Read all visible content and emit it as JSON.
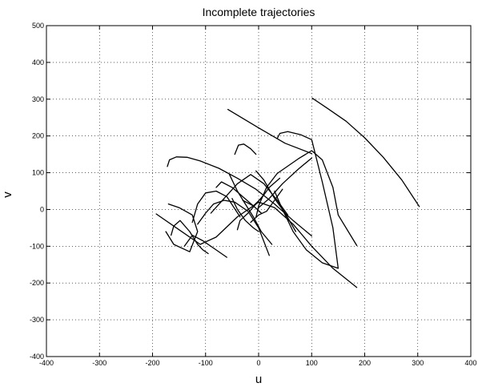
{
  "chart_data": {
    "type": "line",
    "title": "Incomplete trajectories",
    "xlabel": "u",
    "ylabel": "v",
    "xlim": [
      -400,
      400
    ],
    "ylim": [
      -400,
      500
    ],
    "xticks": [
      -400,
      -300,
      -200,
      -100,
      0,
      100,
      200,
      300,
      400
    ],
    "yticks": [
      -400,
      -300,
      -200,
      -100,
      0,
      100,
      200,
      300,
      400,
      500
    ],
    "grid": true,
    "series": [
      {
        "x": [
          101,
          130,
          165,
          200,
          235,
          270,
          303
        ],
        "y": [
          303,
          275,
          240,
          195,
          142,
          80,
          8
        ]
      },
      {
        "x": [
          -58,
          0,
          50,
          100
        ],
        "y": [
          272,
          222,
          180,
          152
        ]
      },
      {
        "x": [
          -172,
          -168,
          -155,
          -135,
          -110,
          -75,
          -40,
          -5,
          30,
          65,
          100
        ],
        "y": [
          117,
          135,
          143,
          142,
          132,
          112,
          85,
          55,
          15,
          -30,
          -72
        ]
      },
      {
        "x": [
          -5,
          0,
          15,
          35,
          75,
          100,
          120,
          140,
          150,
          185
        ],
        "y": [
          -22,
          10,
          60,
          98,
          138,
          160,
          135,
          60,
          -15,
          -98
        ]
      },
      {
        "x": [
          35,
          40,
          55,
          80,
          100,
          120,
          140,
          150,
          120,
          90,
          65,
          45,
          30
        ],
        "y": [
          193,
          207,
          212,
          203,
          190,
          75,
          -50,
          -160,
          -145,
          -110,
          -60,
          0,
          50
        ]
      },
      {
        "x": [
          -193,
          -150,
          -110,
          -80,
          -40,
          0,
          30,
          65,
          100,
          140,
          185
        ],
        "y": [
          -12,
          -55,
          -95,
          -75,
          -20,
          20,
          5,
          -40,
          -100,
          -160,
          -212
        ]
      },
      {
        "x": [
          -45,
          -38,
          -28,
          -15,
          -5
        ],
        "y": [
          150,
          175,
          178,
          165,
          150
        ]
      },
      {
        "x": [
          -165,
          -160,
          -148,
          -130,
          -115,
          -105,
          -95
        ],
        "y": [
          -70,
          -45,
          -30,
          -60,
          -95,
          -110,
          -120
        ]
      },
      {
        "x": [
          -140,
          -125,
          -105,
          -85,
          -60
        ],
        "y": [
          -100,
          -70,
          -85,
          -105,
          -130
        ]
      },
      {
        "x": [
          -170,
          -150,
          -125,
          -115,
          -130,
          -160,
          -175
        ],
        "y": [
          15,
          5,
          -15,
          -60,
          -115,
          -95,
          -60
        ]
      },
      {
        "x": [
          -115,
          -100,
          -85,
          -65,
          -45,
          -20,
          0,
          20
        ],
        "y": [
          -40,
          -10,
          15,
          25,
          20,
          -5,
          -50,
          -125
        ]
      },
      {
        "x": [
          -125,
          -115,
          -100,
          -80,
          -60,
          -35
        ],
        "y": [
          -35,
          15,
          45,
          50,
          35,
          -20
        ]
      },
      {
        "x": [
          -80,
          -70,
          -50,
          -30,
          -10,
          5
        ],
        "y": [
          60,
          75,
          60,
          35,
          10,
          -10
        ]
      },
      {
        "x": [
          -55,
          -40,
          -25,
          -10,
          5,
          25
        ],
        "y": [
          95,
          50,
          15,
          -20,
          -60,
          -95
        ]
      },
      {
        "x": [
          -30,
          -10,
          5,
          20,
          40
        ],
        "y": [
          25,
          10,
          30,
          60,
          85
        ]
      },
      {
        "x": [
          -15,
          0,
          15,
          30,
          45
        ],
        "y": [
          -35,
          -15,
          -5,
          25,
          55
        ]
      },
      {
        "x": [
          -5,
          10,
          30,
          50,
          70
        ],
        "y": [
          105,
          80,
          30,
          -10,
          -60
        ]
      },
      {
        "x": [
          -40,
          -35,
          -20,
          -5,
          10
        ],
        "y": [
          -55,
          -30,
          -10,
          15,
          40
        ]
      },
      {
        "x": [
          -50,
          -40,
          -25,
          -10,
          0
        ],
        "y": [
          30,
          0,
          -30,
          -50,
          -60
        ]
      },
      {
        "x": [
          -90,
          -65,
          -40,
          -15,
          10,
          35,
          55
        ],
        "y": [
          -10,
          30,
          70,
          95,
          70,
          25,
          -15
        ]
      },
      {
        "x": [
          0,
          20,
          45,
          75,
          100
        ],
        "y": [
          5,
          30,
          70,
          110,
          140
        ]
      }
    ]
  }
}
